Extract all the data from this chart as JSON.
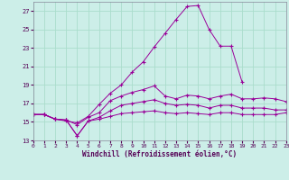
{
  "bg_color": "#cceee8",
  "grid_color": "#aaddcc",
  "line_color": "#990099",
  "xlim": [
    0,
    23
  ],
  "ylim": [
    13,
    28
  ],
  "yticks": [
    13,
    15,
    17,
    19,
    21,
    23,
    25,
    27
  ],
  "xticks": [
    0,
    1,
    2,
    3,
    4,
    5,
    6,
    7,
    8,
    9,
    10,
    11,
    12,
    13,
    14,
    15,
    16,
    17,
    18,
    19,
    20,
    21,
    22,
    23
  ],
  "xlabel": "Windchill (Refroidissement éolien,°C)",
  "series1_y": [
    15.8,
    15.8,
    15.3,
    15.1,
    14.9,
    15.6,
    16.9,
    18.1,
    19.0,
    20.4,
    21.5,
    23.1,
    24.6,
    26.1,
    27.5,
    27.6,
    25.0,
    23.2,
    23.2,
    19.3,
    null,
    null,
    null,
    null
  ],
  "series2_y": [
    15.8,
    15.8,
    15.3,
    15.2,
    14.7,
    15.5,
    16.0,
    17.3,
    17.8,
    18.2,
    18.5,
    18.9,
    17.8,
    17.5,
    17.9,
    17.8,
    17.5,
    17.8,
    18.0,
    17.5,
    17.5,
    17.6,
    17.5,
    17.2
  ],
  "series3_y": [
    15.8,
    15.8,
    15.3,
    15.2,
    13.5,
    15.1,
    15.5,
    16.2,
    16.8,
    17.0,
    17.2,
    17.4,
    17.0,
    16.8,
    16.9,
    16.8,
    16.5,
    16.8,
    16.8,
    16.5,
    16.5,
    16.5,
    16.3,
    16.3
  ],
  "series4_y": [
    15.8,
    15.8,
    15.3,
    15.2,
    13.5,
    15.1,
    15.3,
    15.6,
    15.9,
    16.0,
    16.1,
    16.2,
    16.0,
    15.9,
    16.0,
    15.9,
    15.8,
    16.0,
    16.0,
    15.8,
    15.8,
    15.8,
    15.8,
    16.0
  ]
}
